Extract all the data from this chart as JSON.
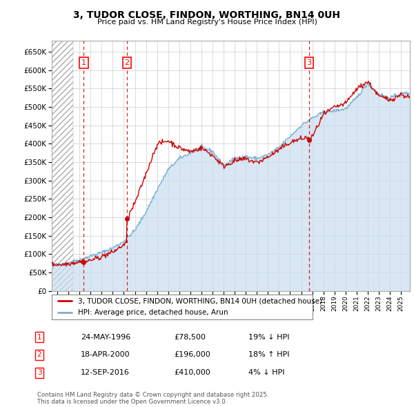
{
  "title": "3, TUDOR CLOSE, FINDON, WORTHING, BN14 0UH",
  "subtitle": "Price paid vs. HM Land Registry's House Price Index (HPI)",
  "ylim": [
    0,
    680000
  ],
  "yticks": [
    0,
    50000,
    100000,
    150000,
    200000,
    250000,
    300000,
    350000,
    400000,
    450000,
    500000,
    550000,
    600000,
    650000
  ],
  "xlim_start": 1993.5,
  "xlim_end": 2025.8,
  "price_paid_color": "#cc0000",
  "hpi_color": "#7ab0d4",
  "hpi_fill_color": "#c8ddef",
  "vline_color": "#cc0000",
  "purchases": [
    {
      "num": 1,
      "date_label": "24-MAY-1996",
      "price": 78500,
      "pct": "19%",
      "dir": "↓",
      "year": 1996.38
    },
    {
      "num": 2,
      "date_label": "18-APR-2000",
      "price": 196000,
      "pct": "18%",
      "dir": "↑",
      "year": 2000.29
    },
    {
      "num": 3,
      "date_label": "12-SEP-2016",
      "price": 410000,
      "pct": "4%",
      "dir": "↓",
      "year": 2016.7
    }
  ],
  "legend_label_price": "3, TUDOR CLOSE, FINDON, WORTHING, BN14 0UH (detached house)",
  "legend_label_hpi": "HPI: Average price, detached house, Arun",
  "footer": "Contains HM Land Registry data © Crown copyright and database right 2025.\nThis data is licensed under the Open Government Licence v3.0.",
  "grid_color": "#cccccc",
  "hatch_region_end": 1995.4
}
